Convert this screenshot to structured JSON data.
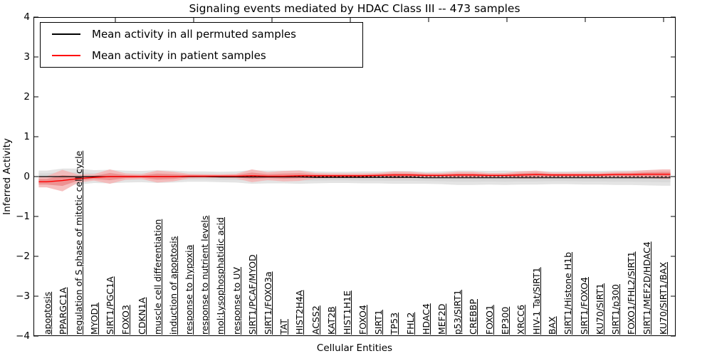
{
  "chart_data": {
    "type": "line",
    "title": "Signaling events mediated by HDAC Class III -- 473 samples",
    "xlabel": "Cellular Entities",
    "ylabel": "Inferred Activity",
    "ylim": [
      -4,
      4
    ],
    "yticks": [
      4,
      3,
      2,
      1,
      0,
      -1,
      -2,
      -3,
      -4
    ],
    "ytick_labels": [
      "4",
      "3",
      "2",
      "1",
      "0",
      "−1",
      "−2",
      "−3",
      "−4"
    ],
    "grid": false,
    "legend_position": "upper left",
    "categories": [
      "apoptosis",
      "PPARGC1A",
      "regulation of S phase of mitotic cell cycle",
      "MYOD1",
      "SIRT1/PGC1A",
      "FOXO3",
      "CDKN1A",
      "muscle cell differentiation",
      "induction of apoptosis",
      "response to hypoxia",
      "response to nutrient levels",
      "mol:Lysophosphatidic acid",
      "response to UV",
      "SIRT1/PCAF/MYOD",
      "SIRT1/FOXO3a",
      "TAT",
      "HIST2H4A",
      "ACSS2",
      "KAT2B",
      "HIST1H1E",
      "FOXO4",
      "SIRT1",
      "TP53",
      "FHL2",
      "HDAC4",
      "MEF2D",
      "p53/SIRT1",
      "CREBBP",
      "FOXO1",
      "EP300",
      "XRCC6",
      "HIV-1 Tat/SIRT1",
      "BAX",
      "SIRT1/Histone H1b",
      "SIRT1/FOXO4",
      "KU70/SIRT1",
      "SIRT1/p300",
      "FOXO1/FHL2/SIRT1",
      "SIRT1/MEF2D/HDAC4",
      "KU70/SIRT1/BAX"
    ],
    "series": [
      {
        "name": "Mean activity in all permuted samples",
        "color": "#000000",
        "band_color": "#e4e4e4",
        "band_inner_color": "#d9d9d9",
        "mean": [
          0,
          0,
          0,
          0,
          0,
          0,
          0,
          0,
          0,
          0,
          0,
          -0.01,
          -0.01,
          -0.01,
          -0.01,
          -0.01,
          -0.01,
          -0.02,
          -0.02,
          -0.02,
          -0.02,
          -0.02,
          -0.02,
          -0.02,
          -0.03,
          -0.03,
          -0.03,
          -0.03,
          -0.03,
          -0.03,
          -0.03,
          -0.03,
          -0.03,
          -0.03,
          -0.03,
          -0.03,
          -0.03,
          -0.03,
          -0.03,
          -0.03
        ],
        "std": [
          0.15,
          0.2,
          0.2,
          0.16,
          0.17,
          0.15,
          0.14,
          0.16,
          0.15,
          0.13,
          0.13,
          0.13,
          0.14,
          0.17,
          0.16,
          0.16,
          0.17,
          0.15,
          0.14,
          0.14,
          0.15,
          0.15,
          0.16,
          0.16,
          0.15,
          0.16,
          0.18,
          0.18,
          0.17,
          0.18,
          0.17,
          0.17,
          0.16,
          0.16,
          0.17,
          0.17,
          0.18,
          0.18,
          0.19,
          0.2
        ]
      },
      {
        "name": "Mean activity in patient samples",
        "color": "#ff0000",
        "band_color": "#f5b4b4",
        "band_inner_color": "#ec8d8d",
        "mean": [
          -0.13,
          -0.1,
          -0.05,
          -0.02,
          0.0,
          0.0,
          0.0,
          0.0,
          0.0,
          0.01,
          0.01,
          0.01,
          0.01,
          0.02,
          0.01,
          0.01,
          0.02,
          0.02,
          0.02,
          0.02,
          0.02,
          0.03,
          0.04,
          0.04,
          0.03,
          0.03,
          0.04,
          0.04,
          0.03,
          0.03,
          0.04,
          0.05,
          0.04,
          0.04,
          0.04,
          0.04,
          0.05,
          0.05,
          0.06,
          0.06
        ],
        "std": [
          0.14,
          0.27,
          0.1,
          0.08,
          0.18,
          0.08,
          0.06,
          0.15,
          0.12,
          0.06,
          0.05,
          0.05,
          0.06,
          0.16,
          0.1,
          0.13,
          0.13,
          0.07,
          0.06,
          0.06,
          0.06,
          0.06,
          0.09,
          0.08,
          0.06,
          0.06,
          0.08,
          0.08,
          0.06,
          0.06,
          0.09,
          0.1,
          0.06,
          0.06,
          0.06,
          0.06,
          0.07,
          0.08,
          0.1,
          0.12
        ]
      }
    ],
    "zero_line": {
      "y": 0,
      "style": "dashed",
      "color": "#000000"
    }
  }
}
